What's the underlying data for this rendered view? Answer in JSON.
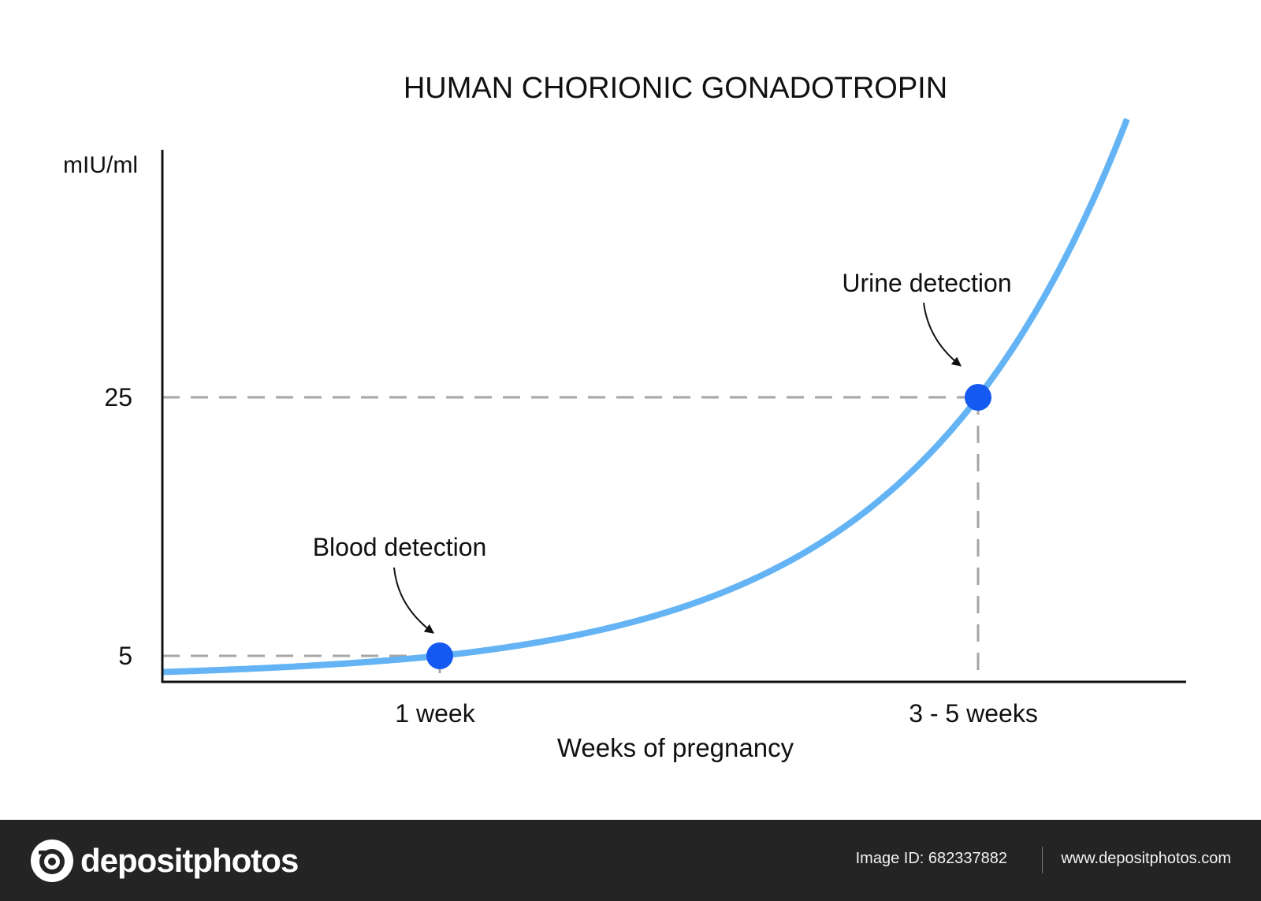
{
  "chart_data": {
    "type": "line",
    "title": "HUMAN CHORIONIC GONADOTROPIN",
    "xlabel": "Weeks of pregnancy",
    "ylabel": "mIU/ml",
    "y_ticks": [
      {
        "value": 5,
        "label": "5"
      },
      {
        "value": 25,
        "label": "25"
      }
    ],
    "x_ticks": [
      {
        "label": "1 week"
      },
      {
        "label": "3 - 5 weeks"
      }
    ],
    "annotations": [
      {
        "label": "Blood detection",
        "x_label": "1 week",
        "y": 5
      },
      {
        "label": "Urine detection",
        "x_label": "3 - 5 weeks",
        "y": 25
      }
    ],
    "line_color": "#64b4f5",
    "marker_color": "#1459f0",
    "guide_color": "#a6a6a6"
  },
  "footer": {
    "brand": "depositphotos",
    "brand_icon": "camera-icon",
    "image_id": "Image ID: 682337882",
    "url": "www.depositphotos.com"
  }
}
